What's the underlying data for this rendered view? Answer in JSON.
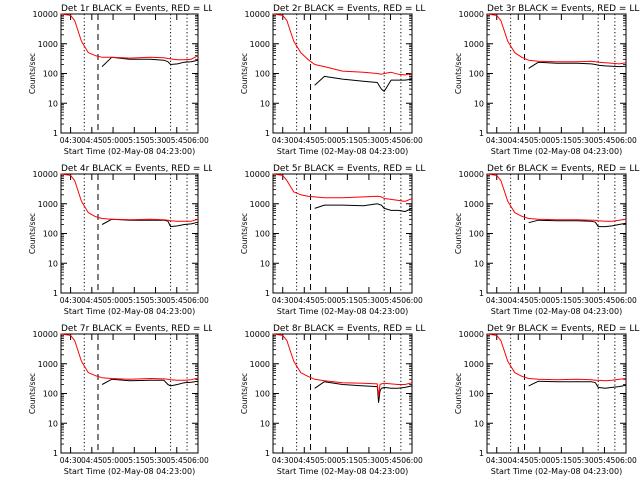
{
  "layout": {
    "rows": 3,
    "cols": 3
  },
  "common": {
    "ylabel": "Counts/sec",
    "xlabel": "Start Time (02-May-08 04:23:00)",
    "xticks": [
      "04:30",
      "04:45",
      "05:00",
      "05:15",
      "05:30",
      "05:45",
      "06:00"
    ],
    "yticks": [
      "1",
      "10",
      "100",
      "1000",
      "10000"
    ],
    "colors": {
      "events": "#000000",
      "lld": "#ff0000",
      "axis": "#000000"
    }
  },
  "chart_data": [
    {
      "type": "line",
      "title": "Det 1r BLACK = Events, RED = LLD",
      "xlabel": "Start Time (02-May-08 04:23:00)",
      "ylabel": "Counts/sec",
      "xlim": [
        0,
        100
      ],
      "ylim": [
        1,
        10000
      ],
      "yscale": "log",
      "x": [
        0,
        7,
        10,
        15,
        20,
        25,
        30,
        37,
        50,
        65,
        75,
        78,
        80,
        85,
        90,
        95,
        100
      ],
      "series": [
        {
          "name": "Events",
          "color": "#000000",
          "values": [
            null,
            null,
            null,
            null,
            null,
            null,
            170,
            350,
            300,
            300,
            280,
            250,
            200,
            210,
            240,
            250,
            280
          ]
        },
        {
          "name": "LLD",
          "color": "#ff0000",
          "values": [
            10000,
            9000,
            6000,
            1200,
            500,
            400,
            350,
            350,
            330,
            350,
            340,
            320,
            310,
            290,
            290,
            300,
            400
          ]
        }
      ],
      "vlines": [
        {
          "x": 17,
          "style": "dotted"
        },
        {
          "x": 27,
          "style": "dashed"
        },
        {
          "x": 80,
          "style": "dotted"
        },
        {
          "x": 92,
          "style": "dotted"
        }
      ]
    },
    {
      "type": "line",
      "title": "Det 2r BLACK = Events, RED = LLD",
      "xlabel": "Start Time (02-May-08 04:23:00)",
      "ylabel": "Counts/sec",
      "xlim": [
        0,
        100
      ],
      "ylim": [
        1,
        10000
      ],
      "yscale": "log",
      "x": [
        0,
        7,
        10,
        15,
        20,
        25,
        30,
        37,
        50,
        65,
        75,
        78,
        80,
        85,
        90,
        95,
        100
      ],
      "series": [
        {
          "name": "Events",
          "color": "#000000",
          "values": [
            null,
            null,
            null,
            null,
            null,
            null,
            40,
            80,
            65,
            55,
            50,
            30,
            25,
            60,
            60,
            60,
            65
          ]
        },
        {
          "name": "LLD",
          "color": "#ff0000",
          "values": [
            10000,
            9000,
            6000,
            1200,
            500,
            300,
            200,
            170,
            120,
            110,
            100,
            95,
            100,
            110,
            95,
            90,
            100
          ]
        }
      ],
      "vlines": [
        {
          "x": 17,
          "style": "dotted"
        },
        {
          "x": 27,
          "style": "dashed"
        },
        {
          "x": 80,
          "style": "dotted"
        },
        {
          "x": 92,
          "style": "dotted"
        }
      ]
    },
    {
      "type": "line",
      "title": "Det 3r BLACK = Events, RED = LLD",
      "xlabel": "Start Time (02-May-08 04:23:00)",
      "ylabel": "Counts/sec",
      "xlim": [
        0,
        100
      ],
      "ylim": [
        1,
        10000
      ],
      "yscale": "log",
      "x": [
        0,
        7,
        10,
        15,
        20,
        25,
        30,
        37,
        50,
        65,
        75,
        78,
        80,
        85,
        90,
        95,
        100
      ],
      "series": [
        {
          "name": "Events",
          "color": "#000000",
          "values": [
            null,
            null,
            null,
            null,
            null,
            null,
            150,
            240,
            220,
            220,
            210,
            200,
            190,
            180,
            175,
            170,
            175
          ]
        },
        {
          "name": "LLD",
          "color": "#ff0000",
          "values": [
            10000,
            9000,
            6000,
            1200,
            500,
            350,
            280,
            260,
            250,
            250,
            260,
            250,
            240,
            230,
            220,
            210,
            230
          ]
        }
      ],
      "vlines": [
        {
          "x": 17,
          "style": "dotted"
        },
        {
          "x": 27,
          "style": "dashed"
        },
        {
          "x": 80,
          "style": "dotted"
        },
        {
          "x": 92,
          "style": "dotted"
        }
      ]
    },
    {
      "type": "line",
      "title": "Det 4r BLACK = Events, RED = LLD",
      "xlabel": "Start Time (02-May-08 04:23:00)",
      "ylabel": "Counts/sec",
      "xlim": [
        0,
        100
      ],
      "ylim": [
        1,
        10000
      ],
      "yscale": "log",
      "x": [
        0,
        7,
        10,
        15,
        20,
        25,
        30,
        37,
        50,
        65,
        75,
        78,
        80,
        85,
        90,
        95,
        100
      ],
      "series": [
        {
          "name": "Events",
          "color": "#000000",
          "values": [
            null,
            null,
            null,
            null,
            null,
            null,
            200,
            300,
            280,
            280,
            280,
            260,
            170,
            180,
            200,
            210,
            240
          ]
        },
        {
          "name": "LLD",
          "color": "#ff0000",
          "values": [
            10000,
            9000,
            6000,
            1200,
            500,
            370,
            320,
            300,
            290,
            300,
            290,
            280,
            270,
            260,
            260,
            260,
            300
          ]
        }
      ],
      "vlines": [
        {
          "x": 17,
          "style": "dotted"
        },
        {
          "x": 27,
          "style": "dashed"
        },
        {
          "x": 80,
          "style": "dotted"
        },
        {
          "x": 92,
          "style": "dotted"
        }
      ]
    },
    {
      "type": "line",
      "title": "Det 5r BLACK = Events, RED = LLD",
      "xlabel": "Start Time (02-May-08 04:23:00)",
      "ylabel": "Counts/sec",
      "xlim": [
        0,
        100
      ],
      "ylim": [
        1,
        10000
      ],
      "yscale": "log",
      "x": [
        0,
        7,
        10,
        15,
        20,
        25,
        30,
        37,
        50,
        65,
        75,
        78,
        80,
        85,
        90,
        95,
        100
      ],
      "series": [
        {
          "name": "Events",
          "color": "#000000",
          "values": [
            null,
            null,
            null,
            null,
            null,
            null,
            700,
            900,
            900,
            850,
            1000,
            900,
            700,
            600,
            600,
            550,
            700
          ]
        },
        {
          "name": "LLD",
          "color": "#ff0000",
          "values": [
            10000,
            9000,
            6000,
            2500,
            2000,
            1800,
            1700,
            1600,
            1600,
            1700,
            1800,
            1700,
            1500,
            1400,
            1300,
            1200,
            1500
          ]
        }
      ],
      "vlines": [
        {
          "x": 17,
          "style": "dotted"
        },
        {
          "x": 27,
          "style": "dashed"
        },
        {
          "x": 80,
          "style": "dotted"
        },
        {
          "x": 92,
          "style": "dotted"
        }
      ]
    },
    {
      "type": "line",
      "title": "Det 6r BLACK = Events, RED = LLD",
      "xlabel": "Start Time (02-May-08 04:23:00)",
      "ylabel": "Counts/sec",
      "xlim": [
        0,
        100
      ],
      "ylim": [
        1,
        10000
      ],
      "yscale": "log",
      "x": [
        0,
        7,
        10,
        15,
        20,
        25,
        30,
        37,
        50,
        65,
        75,
        78,
        80,
        85,
        90,
        95,
        100
      ],
      "series": [
        {
          "name": "Events",
          "color": "#000000",
          "values": [
            null,
            null,
            null,
            null,
            null,
            null,
            230,
            280,
            270,
            270,
            260,
            240,
            170,
            170,
            180,
            200,
            220
          ]
        },
        {
          "name": "LLD",
          "color": "#ff0000",
          "values": [
            10000,
            9000,
            6000,
            1200,
            500,
            380,
            320,
            300,
            290,
            290,
            280,
            280,
            270,
            260,
            260,
            280,
            300
          ]
        }
      ],
      "vlines": [
        {
          "x": 17,
          "style": "dotted"
        },
        {
          "x": 27,
          "style": "dashed"
        },
        {
          "x": 80,
          "style": "dotted"
        },
        {
          "x": 92,
          "style": "dotted"
        }
      ]
    },
    {
      "type": "line",
      "title": "Det 7r BLACK = Events, RED = LLD",
      "xlabel": "Start Time (02-May-08 04:23:00)",
      "ylabel": "Counts/sec",
      "xlim": [
        0,
        100
      ],
      "ylim": [
        1,
        10000
      ],
      "yscale": "log",
      "x": [
        0,
        7,
        10,
        15,
        20,
        25,
        30,
        37,
        50,
        65,
        75,
        78,
        80,
        85,
        90,
        95,
        100
      ],
      "series": [
        {
          "name": "Events",
          "color": "#000000",
          "values": [
            null,
            null,
            null,
            null,
            null,
            null,
            200,
            300,
            270,
            280,
            280,
            200,
            180,
            200,
            230,
            240,
            260
          ]
        },
        {
          "name": "LLD",
          "color": "#ff0000",
          "values": [
            10000,
            9000,
            6000,
            1200,
            500,
            400,
            340,
            320,
            300,
            320,
            310,
            300,
            290,
            280,
            280,
            290,
            330
          ]
        }
      ],
      "vlines": [
        {
          "x": 17,
          "style": "dotted"
        },
        {
          "x": 27,
          "style": "dashed"
        },
        {
          "x": 80,
          "style": "dotted"
        },
        {
          "x": 92,
          "style": "dotted"
        }
      ]
    },
    {
      "type": "line",
      "title": "Det 8r BLACK = Events, RED = LLD",
      "xlabel": "Start Time (02-May-08 04:23:00)",
      "ylabel": "Counts/sec",
      "xlim": [
        0,
        100
      ],
      "ylim": [
        1,
        10000
      ],
      "yscale": "log",
      "x": [
        0,
        7,
        10,
        15,
        20,
        25,
        30,
        37,
        50,
        65,
        75,
        76,
        77,
        78,
        80,
        85,
        90,
        95,
        100
      ],
      "series": [
        {
          "name": "Events",
          "color": "#000000",
          "values": [
            null,
            null,
            null,
            null,
            null,
            null,
            150,
            250,
            200,
            180,
            170,
            50,
            120,
            150,
            160,
            150,
            150,
            160,
            180
          ]
        },
        {
          "name": "LLD",
          "color": "#ff0000",
          "values": [
            10000,
            9000,
            6000,
            1200,
            500,
            380,
            300,
            270,
            230,
            220,
            210,
            80,
            200,
            210,
            220,
            210,
            200,
            200,
            230
          ]
        }
      ],
      "vlines": [
        {
          "x": 17,
          "style": "dotted"
        },
        {
          "x": 27,
          "style": "dashed"
        },
        {
          "x": 80,
          "style": "dotted"
        },
        {
          "x": 92,
          "style": "dotted"
        }
      ]
    },
    {
      "type": "line",
      "title": "Det 9r BLACK = Events, RED = LLD",
      "xlabel": "Start Time (02-May-08 04:23:00)",
      "ylabel": "Counts/sec",
      "xlim": [
        0,
        100
      ],
      "ylim": [
        1,
        10000
      ],
      "yscale": "log",
      "x": [
        0,
        7,
        10,
        15,
        20,
        25,
        30,
        37,
        50,
        65,
        75,
        78,
        80,
        85,
        90,
        95,
        100
      ],
      "series": [
        {
          "name": "Events",
          "color": "#000000",
          "values": [
            null,
            null,
            null,
            null,
            null,
            null,
            180,
            260,
            250,
            250,
            250,
            230,
            160,
            150,
            160,
            170,
            190
          ]
        },
        {
          "name": "LLD",
          "color": "#ff0000",
          "values": [
            10000,
            9000,
            6000,
            1200,
            500,
            380,
            320,
            300,
            290,
            300,
            290,
            280,
            280,
            270,
            280,
            300,
            320
          ]
        }
      ],
      "vlines": [
        {
          "x": 17,
          "style": "dotted"
        },
        {
          "x": 27,
          "style": "dashed"
        },
        {
          "x": 80,
          "style": "dotted"
        },
        {
          "x": 92,
          "style": "dotted"
        }
      ]
    }
  ]
}
